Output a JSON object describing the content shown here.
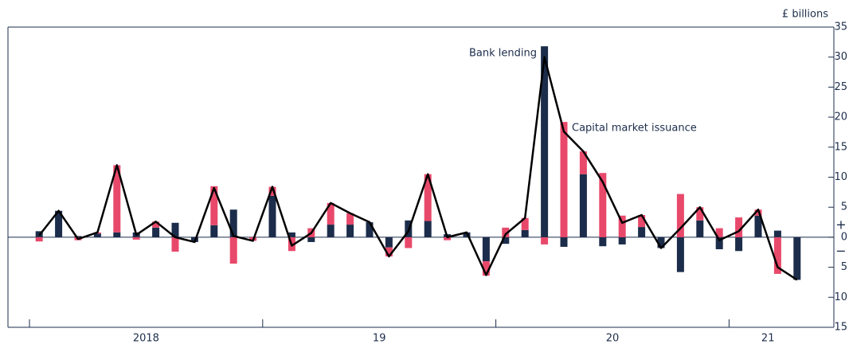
{
  "chart_data": {
    "type": "bar",
    "unit_label": "£ billions",
    "sign_labels": [
      "+",
      "−"
    ],
    "year_labels": [
      "2018",
      "19",
      "20",
      "21"
    ],
    "months_per_year": 12,
    "categories": [
      null,
      null,
      null,
      null,
      null,
      null,
      null,
      null,
      null,
      null,
      null,
      null,
      null,
      null,
      null,
      null,
      null,
      null,
      null,
      null,
      null,
      null,
      null,
      null,
      null,
      null,
      null,
      null,
      null,
      null,
      null,
      null,
      null,
      null,
      null,
      null,
      null,
      null,
      null,
      null
    ],
    "series": [
      {
        "name": "Bank lending",
        "color": "#1c2d4b",
        "values": [
          1.0,
          4.4,
          0.2,
          0.6,
          0.8,
          0.8,
          1.6,
          2.4,
          -0.8,
          2.0,
          4.6,
          0,
          6.9,
          0.8,
          -0.8,
          2.1,
          2.1,
          2.5,
          -1.7,
          2.8,
          2.7,
          0.5,
          0.8,
          -4.0,
          -1.1,
          1.2,
          31.8,
          -1.6,
          10.5,
          -1.5,
          -1.2,
          1.7,
          -1.8,
          -5.8,
          2.8,
          -2.0,
          -2.3,
          3.6,
          1.1,
          -7.1
        ]
      },
      {
        "name": "Capital market issuance",
        "color": "#e8496b",
        "values": [
          -0.7,
          0,
          -0.5,
          0.2,
          11.2,
          -0.4,
          1.0,
          -2.4,
          0,
          6.5,
          -4.4,
          -0.6,
          1.5,
          -2.3,
          1.5,
          3.6,
          1.9,
          0,
          -1.5,
          -1.8,
          7.8,
          -0.5,
          0,
          -2.4,
          1.6,
          2.0,
          -1.2,
          19.2,
          3.8,
          10.7,
          3.6,
          2.0,
          0,
          7.2,
          2.2,
          1.5,
          3.3,
          1.0,
          -6.1,
          0
        ]
      }
    ],
    "line": {
      "color": "#000000",
      "values": [
        0.3,
        4.4,
        -0.3,
        0.8,
        12.0,
        0.4,
        2.6,
        0,
        -0.8,
        8.2,
        0.2,
        -0.6,
        8.4,
        -1.4,
        0.7,
        5.7,
        4.0,
        2.5,
        -3.2,
        1.0,
        10.5,
        0,
        0.8,
        -6.3,
        0.5,
        3.2,
        30.0,
        17.6,
        14.3,
        9.2,
        2.4,
        3.7,
        -1.8,
        1.5,
        5.0,
        -0.5,
        1.0,
        4.6,
        -5.0,
        -7.1
      ]
    },
    "ylim": [
      -15,
      35
    ],
    "yticks": [
      {
        "value": -15,
        "label": "15"
      },
      {
        "value": -10,
        "label": "10"
      },
      {
        "value": -5,
        "label": "5"
      },
      0,
      5,
      10,
      15,
      20,
      25,
      30,
      35
    ]
  }
}
